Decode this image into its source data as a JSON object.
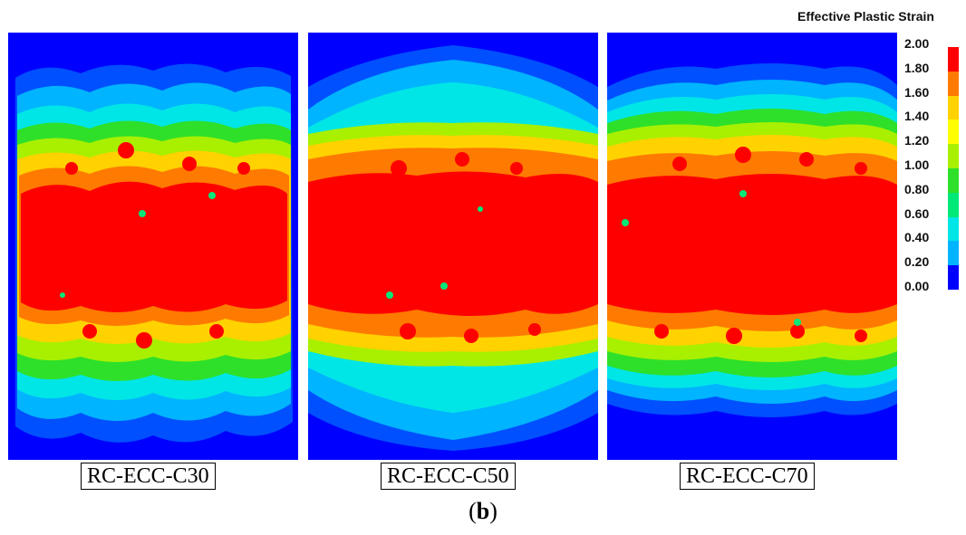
{
  "legend": {
    "title": "Effective Plastic Strain",
    "ticks": [
      "2.00",
      "1.80",
      "1.60",
      "1.40",
      "1.20",
      "1.00",
      "0.80",
      "0.60",
      "0.40",
      "0.20",
      "0.00"
    ],
    "colors": [
      "#ff0000",
      "#ff7a00",
      "#ffd200",
      "#ffff00",
      "#a8f000",
      "#2ee02a",
      "#00e878",
      "#00e6e6",
      "#00b4ff",
      "#0050ff"
    ]
  },
  "panels": [
    {
      "caption": "RC-ECC-C30"
    },
    {
      "caption": "RC-ECC-C50"
    },
    {
      "caption": "RC-ECC-C70"
    }
  ],
  "figure_label": {
    "open": "(",
    "letter": "b",
    "close": ")"
  }
}
